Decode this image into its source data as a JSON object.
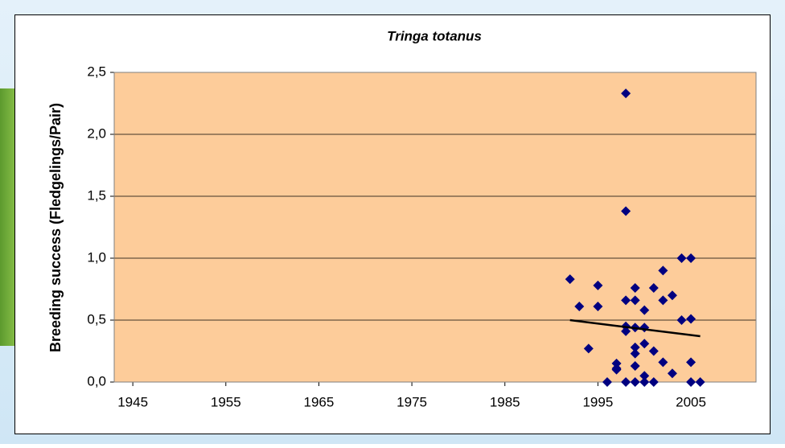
{
  "chart_data": {
    "type": "scatter",
    "title": "Tringa totanus",
    "y_label": "Breeding success (Fledgelings/Pair)",
    "xlim": [
      1943,
      2012
    ],
    "xticks": [
      1945,
      1955,
      1965,
      1975,
      1985,
      1995,
      2005
    ],
    "ylim": [
      0,
      2.5
    ],
    "yticks": [
      {
        "value": 0,
        "label": "0,0"
      },
      {
        "value": 0.5,
        "label": "0,5"
      },
      {
        "value": 1,
        "label": "1,0"
      },
      {
        "value": 1.5,
        "label": "1,5"
      },
      {
        "value": 2,
        "label": "2,0"
      },
      {
        "value": 2.5,
        "label": "2,5"
      }
    ],
    "grid": true,
    "plot_color": "#fdcc9a",
    "series": [
      {
        "color": "#000080",
        "x": [
          1992,
          1993,
          1994,
          1995,
          1995,
          1996,
          1997,
          1997,
          1997,
          1998,
          1998,
          1998,
          1998,
          1998,
          1998,
          1999,
          1999,
          1999,
          1999,
          1999,
          1999,
          1999,
          2000,
          2000,
          2000,
          2000,
          2000,
          2001,
          2001,
          2001,
          2002,
          2002,
          2002,
          2003,
          2003,
          2004,
          2004,
          2005,
          2005,
          2005,
          2005,
          2006
        ],
        "values": [
          0.83,
          0.61,
          0.27,
          0.78,
          0.61,
          0,
          0.15,
          0.11,
          0.1,
          0,
          2.33,
          1.38,
          0.66,
          0.45,
          0.41,
          0.76,
          0.66,
          0.44,
          0.28,
          0.23,
          0.13,
          0,
          0.44,
          0.58,
          0.31,
          0.05,
          0,
          0.76,
          0.25,
          0,
          0.9,
          0.66,
          0.16,
          0.7,
          0.07,
          1,
          0.5,
          1,
          0.51,
          0.16,
          0,
          0
        ]
      },
      {
        "type": "line",
        "color": "#000000",
        "x": [
          1992,
          2006
        ],
        "values": [
          0.5,
          0.37
        ]
      }
    ]
  }
}
